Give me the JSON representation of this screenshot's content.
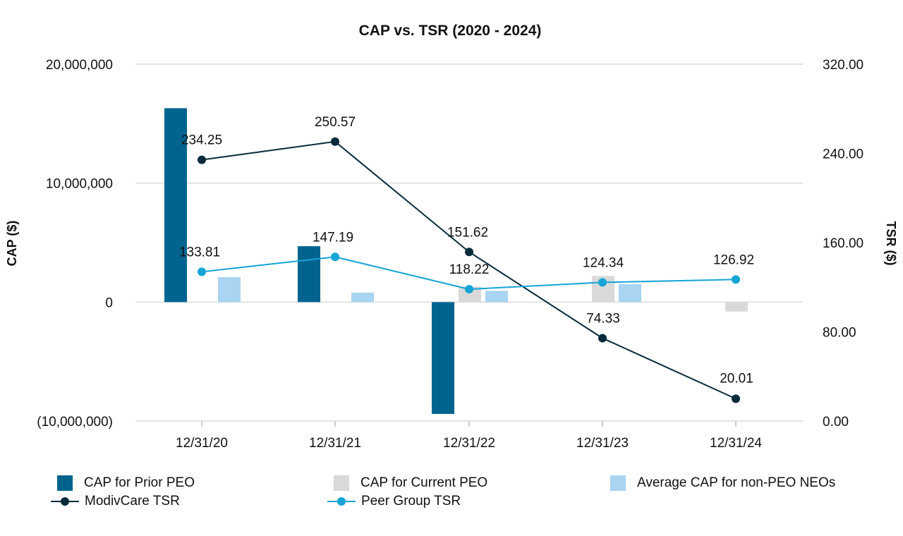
{
  "chart_data": {
    "type": "bar+line",
    "title": "CAP vs. TSR (2020 - 2024)",
    "ylabel_left": "CAP ($)",
    "ylabel_right": "TSR ($)",
    "categories": [
      "12/31/20",
      "12/31/21",
      "12/31/22",
      "12/31/23",
      "12/31/24"
    ],
    "ylim_left": [
      -10000000,
      20000000
    ],
    "yticks_left": [
      20000000,
      10000000,
      0,
      -10000000
    ],
    "ytick_labels_left": [
      "20,000,000",
      "10,000,000",
      "0",
      "(10,000,000)"
    ],
    "ylim_right": [
      0,
      320
    ],
    "yticks_right": [
      320,
      240,
      160,
      80,
      0
    ],
    "ytick_labels_right": [
      "320.00",
      "240.00",
      "160.00",
      "80.00",
      "0.00"
    ],
    "bar_series": [
      {
        "name": "CAP for Prior PEO",
        "color": "#00648F",
        "values": [
          16300000,
          4700000,
          -9400000,
          null,
          null
        ]
      },
      {
        "name": "CAP for Current PEO",
        "color": "#D9D9D9",
        "values": [
          null,
          null,
          1300000,
          2200000,
          -800000
        ]
      },
      {
        "name": "Average CAP for non-PEO NEOs",
        "color": "#A9D4F2",
        "values": [
          2100000,
          800000,
          950000,
          1500000,
          null
        ]
      }
    ],
    "line_series": [
      {
        "name": "ModivCare TSR",
        "color": "#062A3A",
        "values": [
          234.25,
          250.57,
          151.62,
          74.33,
          20.01
        ],
        "labels": [
          "234.25",
          "250.57",
          "151.62",
          "74.33",
          "20.01"
        ]
      },
      {
        "name": "Peer Group TSR",
        "color": "#15A4D6",
        "values": [
          133.81,
          147.19,
          118.22,
          124.34,
          126.92
        ],
        "labels": [
          "133.81",
          "147.19",
          "118.22",
          "124.34",
          "126.92"
        ]
      }
    ],
    "grid": true,
    "legend_position": "bottom"
  },
  "legend": {
    "prior_peo": "CAP for Prior PEO",
    "current_peo": "CAP for Current PEO",
    "non_peo": "Average CAP for non-PEO NEOs",
    "modivcare_tsr": "ModivCare TSR",
    "peer_tsr": "Peer Group TSR"
  }
}
